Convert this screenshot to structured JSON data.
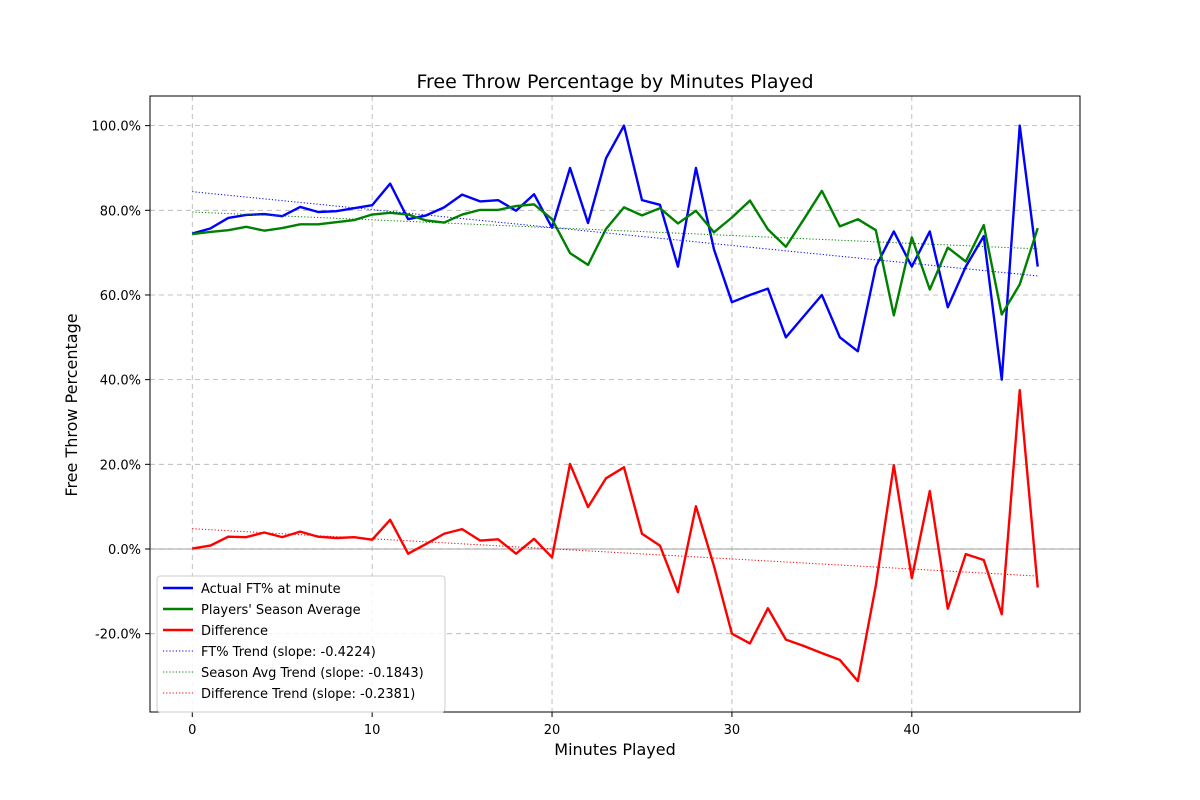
{
  "chart_data": {
    "type": "line",
    "title": "Free Throw Percentage by Minutes Played",
    "xlabel": "Minutes Played",
    "ylabel": "Free Throw Percentage",
    "xlim": [
      -2.35,
      49.35
    ],
    "ylim": [
      -38.5,
      107.0
    ],
    "xticks": [
      0,
      10,
      20,
      30,
      40
    ],
    "yticks": [
      -20,
      0,
      20,
      40,
      60,
      80,
      100
    ],
    "ytick_format": "percent_1dp",
    "grid": true,
    "legend_position": "lower-left",
    "series": [
      {
        "name": "Actual FT% at minute",
        "color": "#0000ff",
        "style": "solid",
        "x": [
          0,
          1,
          2,
          3,
          4,
          5,
          6,
          7,
          8,
          9,
          10,
          11,
          12,
          13,
          14,
          15,
          16,
          17,
          18,
          19,
          20,
          21,
          22,
          23,
          24,
          25,
          26,
          27,
          28,
          29,
          30,
          31,
          32,
          33,
          34,
          35,
          36,
          37,
          38,
          39,
          40,
          41,
          42,
          43,
          44,
          45,
          46,
          47
        ],
        "values": [
          74.5,
          75.7,
          78.2,
          78.9,
          79.1,
          78.6,
          80.8,
          79.6,
          79.8,
          80.5,
          81.2,
          86.3,
          77.9,
          78.8,
          80.7,
          83.7,
          82.1,
          82.4,
          79.9,
          83.8,
          75.9,
          90.0,
          77.0,
          92.3,
          100.0,
          82.4,
          81.3,
          66.7,
          90.0,
          70.8,
          58.3,
          60.0,
          61.5,
          50.0,
          55.0,
          60.0,
          50.0,
          46.7,
          66.7,
          75.0,
          66.7,
          75.0,
          57.1,
          66.7,
          73.9,
          40.0,
          100.0,
          66.7
        ]
      },
      {
        "name": "Players' Season Average",
        "color": "#008000",
        "style": "solid",
        "x": [
          0,
          1,
          2,
          3,
          4,
          5,
          6,
          7,
          8,
          9,
          10,
          11,
          12,
          13,
          14,
          15,
          16,
          17,
          18,
          19,
          20,
          21,
          22,
          23,
          24,
          25,
          26,
          27,
          28,
          29,
          30,
          31,
          32,
          33,
          34,
          35,
          36,
          37,
          38,
          39,
          40,
          41,
          42,
          43,
          44,
          45,
          46,
          47
        ],
        "values": [
          74.4,
          74.9,
          75.3,
          76.1,
          75.2,
          75.8,
          76.7,
          76.7,
          77.2,
          77.7,
          79.0,
          79.4,
          79.0,
          77.6,
          77.1,
          79.0,
          80.1,
          80.1,
          81.0,
          81.4,
          77.9,
          69.9,
          67.1,
          75.6,
          80.7,
          78.8,
          80.5,
          76.9,
          79.9,
          74.8,
          78.3,
          82.3,
          75.5,
          71.4,
          77.9,
          84.6,
          76.2,
          77.9,
          75.3,
          55.2,
          73.6,
          61.3,
          71.2,
          67.9,
          76.5,
          55.4,
          62.5,
          75.8
        ]
      },
      {
        "name": "Difference",
        "color": "#ff0000",
        "style": "solid",
        "x": [
          0,
          1,
          2,
          3,
          4,
          5,
          6,
          7,
          8,
          9,
          10,
          11,
          12,
          13,
          14,
          15,
          16,
          17,
          18,
          19,
          20,
          21,
          22,
          23,
          24,
          25,
          26,
          27,
          28,
          29,
          30,
          31,
          32,
          33,
          34,
          35,
          36,
          37,
          38,
          39,
          40,
          41,
          42,
          43,
          44,
          45,
          46,
          47
        ],
        "values": [
          0.1,
          0.8,
          2.9,
          2.8,
          3.9,
          2.8,
          4.1,
          2.9,
          2.6,
          2.8,
          2.2,
          6.9,
          -1.1,
          1.2,
          3.6,
          4.7,
          2.0,
          2.3,
          -1.1,
          2.4,
          -2.0,
          20.1,
          9.9,
          16.7,
          19.3,
          3.6,
          0.8,
          -10.2,
          10.1,
          -4.0,
          -20.0,
          -22.3,
          -14.0,
          -21.4,
          -22.9,
          -24.6,
          -26.2,
          -31.2,
          -8.6,
          19.8,
          -6.9,
          13.7,
          -14.1,
          -1.2,
          -2.6,
          -15.4,
          37.5,
          -9.1
        ]
      },
      {
        "name": "FT% Trend (slope: -0.4224)",
        "color": "#0000ff",
        "style": "dotted",
        "x": [
          0,
          47
        ],
        "values": [
          84.4,
          64.5
        ]
      },
      {
        "name": "Season Avg Trend (slope: -0.1843)",
        "color": "#008000",
        "style": "dotted",
        "x": [
          0,
          47
        ],
        "values": [
          79.6,
          70.9
        ]
      },
      {
        "name": "Difference Trend (slope: -0.2381)",
        "color": "#ff0000",
        "style": "dotted",
        "x": [
          0,
          47
        ],
        "values": [
          4.8,
          -6.4
        ]
      }
    ],
    "reference_lines": [
      {
        "axis": "y",
        "value": 0,
        "color": "#808080"
      }
    ]
  }
}
